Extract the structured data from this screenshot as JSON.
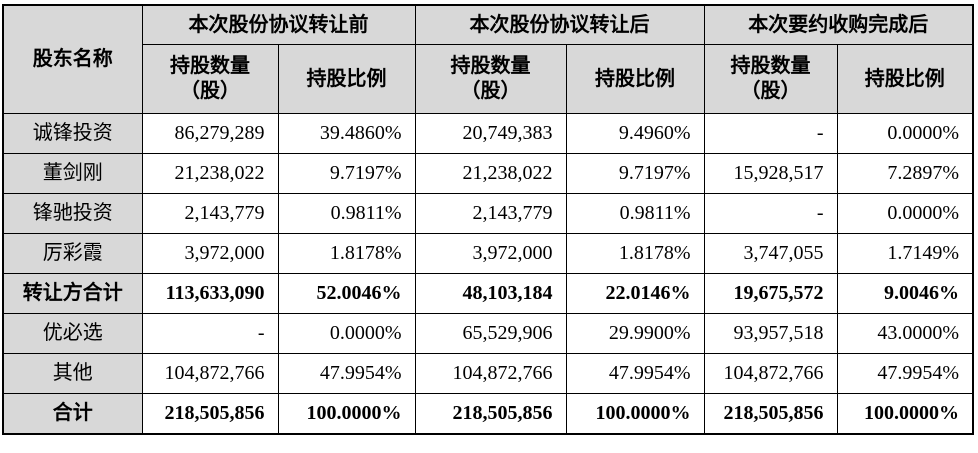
{
  "colors": {
    "header_bg": "#d8d8d8",
    "border": "#000000",
    "cell_bg": "#ffffff",
    "text": "#000000"
  },
  "table": {
    "corner_header": "股东名称",
    "groups": [
      {
        "label": "本次股份协议转让前"
      },
      {
        "label": "本次股份协议转让后"
      },
      {
        "label": "本次要约收购完成后"
      }
    ],
    "sub_headers": {
      "qty_line1": "持股数量",
      "qty_line2": "（股）",
      "ratio": "持股比例"
    },
    "rows": [
      {
        "name": "诚锋投资",
        "bold": false,
        "cells": [
          "86,279,289",
          "39.4860%",
          "20,749,383",
          "9.4960%",
          "-",
          "0.0000%"
        ]
      },
      {
        "name": "董剑刚",
        "bold": false,
        "cells": [
          "21,238,022",
          "9.7197%",
          "21,238,022",
          "9.7197%",
          "15,928,517",
          "7.2897%"
        ]
      },
      {
        "name": "锋驰投资",
        "bold": false,
        "cells": [
          "2,143,779",
          "0.9811%",
          "2,143,779",
          "0.9811%",
          "-",
          "0.0000%"
        ]
      },
      {
        "name": "厉彩霞",
        "bold": false,
        "cells": [
          "3,972,000",
          "1.8178%",
          "3,972,000",
          "1.8178%",
          "3,747,055",
          "1.7149%"
        ]
      },
      {
        "name": "转让方合计",
        "bold": true,
        "cells": [
          "113,633,090",
          "52.0046%",
          "48,103,184",
          "22.0146%",
          "19,675,572",
          "9.0046%"
        ]
      },
      {
        "name": "优必选",
        "bold": false,
        "cells": [
          "-",
          "0.0000%",
          "65,529,906",
          "29.9900%",
          "93,957,518",
          "43.0000%"
        ]
      },
      {
        "name": "其他",
        "bold": false,
        "cells": [
          "104,872,766",
          "47.9954%",
          "104,872,766",
          "47.9954%",
          "104,872,766",
          "47.9954%"
        ]
      },
      {
        "name": "合计",
        "bold": true,
        "cells": [
          "218,505,856",
          "100.0000%",
          "218,505,856",
          "100.0000%",
          "218,505,856",
          "100.0000%"
        ]
      }
    ]
  }
}
